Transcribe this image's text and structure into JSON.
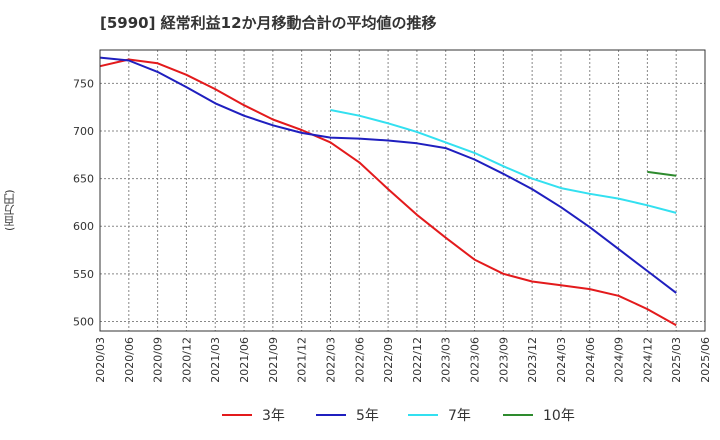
{
  "title": "[5990]  経常利益12か月移動合計の平均値の推移",
  "chart_data": {
    "type": "line",
    "title": "[5990]  経常利益12か月移動合計の平均値の推移",
    "ylabel": "(百万円)",
    "xlabel": "",
    "ylim": [
      490,
      785
    ],
    "yticks": [
      500,
      550,
      600,
      650,
      700,
      750
    ],
    "ytick_labels": [
      "500",
      "550",
      "600",
      "650",
      "700",
      "750"
    ],
    "xticks": [
      "2020/03",
      "2020/06",
      "2020/09",
      "2020/12",
      "2021/03",
      "2021/06",
      "2021/09",
      "2021/12",
      "2022/03",
      "2022/06",
      "2022/09",
      "2022/12",
      "2023/03",
      "2023/06",
      "2023/09",
      "2023/12",
      "2024/03",
      "2024/06",
      "2024/09",
      "2024/12",
      "2025/03",
      "2025/06"
    ],
    "grid": true,
    "legend_position": "bottom",
    "series": [
      {
        "name": "3年",
        "color": "#e31a1c",
        "x": [
          "2020/03",
          "2020/06",
          "2020/09",
          "2020/12",
          "2021/03",
          "2021/06",
          "2021/09",
          "2021/12",
          "2022/03",
          "2022/06",
          "2022/09",
          "2022/12",
          "2023/03",
          "2023/06",
          "2023/09",
          "2023/12",
          "2024/03",
          "2024/06",
          "2024/09",
          "2024/12",
          "2025/03"
        ],
        "values": [
          768,
          775,
          771,
          759,
          744,
          727,
          712,
          701,
          688,
          667,
          639,
          612,
          588,
          565,
          550,
          542,
          538,
          534,
          527,
          513,
          496
        ]
      },
      {
        "name": "5年",
        "color": "#1f1fbf",
        "x": [
          "2020/03",
          "2020/06",
          "2020/09",
          "2020/12",
          "2021/03",
          "2021/06",
          "2021/09",
          "2021/12",
          "2022/03",
          "2022/06",
          "2022/09",
          "2022/12",
          "2023/03",
          "2023/06",
          "2023/09",
          "2023/12",
          "2024/03",
          "2024/06",
          "2024/09",
          "2024/12",
          "2025/03"
        ],
        "values": [
          777,
          774,
          762,
          746,
          729,
          716,
          706,
          698,
          693,
          692,
          690,
          687,
          682,
          670,
          655,
          639,
          620,
          599,
          576,
          553,
          530
        ]
      },
      {
        "name": "7年",
        "color": "#33e0f0",
        "x": [
          "2022/03",
          "2022/06",
          "2022/09",
          "2022/12",
          "2023/03",
          "2023/06",
          "2023/09",
          "2023/12",
          "2024/03",
          "2024/06",
          "2024/09",
          "2024/12",
          "2025/03"
        ],
        "values": [
          722,
          716,
          708,
          699,
          688,
          677,
          663,
          650,
          640,
          634,
          629,
          622,
          614
        ]
      },
      {
        "name": "10年",
        "color": "#2e8b2e",
        "x": [
          "2024/12",
          "2025/03"
        ],
        "values": [
          657,
          653
        ]
      }
    ]
  }
}
